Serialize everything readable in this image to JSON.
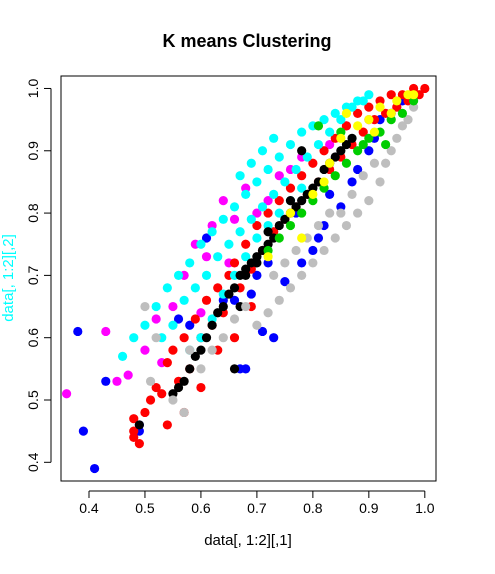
{
  "chart_data": {
    "type": "scatter",
    "title": "K means Clustering",
    "xlabel": "data[, 1:2][,1]",
    "ylabel": "data[, 1:2][,2]",
    "xlim": [
      0.35,
      1.02
    ],
    "ylim": [
      0.37,
      1.02
    ],
    "x_ticks": [
      0.4,
      0.5,
      0.6,
      0.7,
      0.8,
      0.9,
      1.0
    ],
    "x_tick_labels": [
      "0.4",
      "0.5",
      "0.6",
      "0.7",
      "0.8",
      "0.9",
      "1.0"
    ],
    "y_ticks": [
      0.4,
      0.5,
      0.6,
      0.7,
      0.8,
      0.9,
      1.0
    ],
    "y_tick_labels": [
      "0.4",
      "0.5",
      "0.6",
      "0.7",
      "0.8",
      "0.9",
      "1.0"
    ],
    "grid": false,
    "legend": "none",
    "clusters": [
      {
        "color": "#0000ff",
        "points": [
          [
            0.38,
            0.61
          ],
          [
            0.39,
            0.45
          ],
          [
            0.41,
            0.39
          ],
          [
            0.43,
            0.53
          ],
          [
            0.49,
            0.46
          ],
          [
            0.49,
            0.45
          ],
          [
            0.56,
            0.63
          ],
          [
            0.58,
            0.62
          ],
          [
            0.61,
            0.76
          ],
          [
            0.64,
            0.66
          ],
          [
            0.66,
            0.66
          ],
          [
            0.67,
            0.55
          ],
          [
            0.68,
            0.55
          ],
          [
            0.69,
            0.67
          ],
          [
            0.7,
            0.7
          ],
          [
            0.71,
            0.61
          ],
          [
            0.72,
            0.72
          ],
          [
            0.73,
            0.6
          ],
          [
            0.75,
            0.69
          ],
          [
            0.77,
            0.8
          ],
          [
            0.78,
            0.72
          ],
          [
            0.8,
            0.74
          ],
          [
            0.81,
            0.76
          ],
          [
            0.82,
            0.78
          ],
          [
            0.83,
            0.83
          ],
          [
            0.85,
            0.81
          ],
          [
            0.87,
            0.85
          ],
          [
            0.88,
            0.87
          ],
          [
            0.9,
            0.9
          ],
          [
            0.91,
            0.92
          ],
          [
            0.92,
            0.95
          ],
          [
            0.94,
            0.96
          ],
          [
            0.96,
            0.98
          ]
        ]
      },
      {
        "color": "#ff00ff",
        "points": [
          [
            0.36,
            0.51
          ],
          [
            0.43,
            0.61
          ],
          [
            0.45,
            0.53
          ],
          [
            0.47,
            0.54
          ],
          [
            0.5,
            0.58
          ],
          [
            0.52,
            0.63
          ],
          [
            0.53,
            0.56
          ],
          [
            0.55,
            0.65
          ],
          [
            0.57,
            0.7
          ],
          [
            0.59,
            0.75
          ],
          [
            0.6,
            0.64
          ],
          [
            0.61,
            0.73
          ],
          [
            0.62,
            0.78
          ],
          [
            0.64,
            0.82
          ],
          [
            0.65,
            0.72
          ],
          [
            0.66,
            0.79
          ],
          [
            0.68,
            0.84
          ],
          [
            0.7,
            0.8
          ],
          [
            0.72,
            0.82
          ],
          [
            0.74,
            0.86
          ],
          [
            0.76,
            0.87
          ],
          [
            0.78,
            0.89
          ],
          [
            0.83,
            0.91
          ],
          [
            0.86,
            0.94
          ],
          [
            0.9,
            0.95
          ]
        ]
      },
      {
        "color": "#ff0000",
        "points": [
          [
            0.48,
            0.44
          ],
          [
            0.48,
            0.45
          ],
          [
            0.48,
            0.47
          ],
          [
            0.49,
            0.43
          ],
          [
            0.5,
            0.48
          ],
          [
            0.51,
            0.5
          ],
          [
            0.52,
            0.52
          ],
          [
            0.53,
            0.51
          ],
          [
            0.54,
            0.46
          ],
          [
            0.54,
            0.56
          ],
          [
            0.55,
            0.58
          ],
          [
            0.56,
            0.53
          ],
          [
            0.57,
            0.6
          ],
          [
            0.58,
            0.55
          ],
          [
            0.59,
            0.63
          ],
          [
            0.6,
            0.6
          ],
          [
            0.61,
            0.66
          ],
          [
            0.62,
            0.62
          ],
          [
            0.63,
            0.68
          ],
          [
            0.64,
            0.64
          ],
          [
            0.65,
            0.7
          ],
          [
            0.66,
            0.72
          ],
          [
            0.67,
            0.68
          ],
          [
            0.68,
            0.75
          ],
          [
            0.69,
            0.71
          ],
          [
            0.7,
            0.78
          ],
          [
            0.71,
            0.74
          ],
          [
            0.72,
            0.8
          ],
          [
            0.73,
            0.77
          ],
          [
            0.74,
            0.82
          ],
          [
            0.75,
            0.79
          ],
          [
            0.76,
            0.84
          ],
          [
            0.77,
            0.81
          ],
          [
            0.78,
            0.86
          ],
          [
            0.79,
            0.83
          ],
          [
            0.8,
            0.88
          ],
          [
            0.81,
            0.85
          ],
          [
            0.82,
            0.9
          ],
          [
            0.83,
            0.87
          ],
          [
            0.84,
            0.92
          ],
          [
            0.85,
            0.89
          ],
          [
            0.86,
            0.94
          ],
          [
            0.87,
            0.91
          ],
          [
            0.88,
            0.96
          ],
          [
            0.89,
            0.93
          ],
          [
            0.9,
            0.97
          ],
          [
            0.91,
            0.95
          ],
          [
            0.92,
            0.98
          ],
          [
            0.93,
            0.96
          ],
          [
            0.94,
            0.99
          ],
          [
            0.95,
            0.97
          ],
          [
            0.96,
            0.99
          ],
          [
            0.97,
            0.98
          ],
          [
            0.98,
            1.0
          ],
          [
            0.99,
            0.99
          ],
          [
            1.0,
            1.0
          ],
          [
            0.57,
            0.48
          ],
          [
            0.6,
            0.52
          ],
          [
            0.63,
            0.58
          ],
          [
            0.66,
            0.6
          ],
          [
            0.69,
            0.65
          ]
        ]
      },
      {
        "color": "#00ffff",
        "points": [
          [
            0.46,
            0.57
          ],
          [
            0.48,
            0.6
          ],
          [
            0.5,
            0.62
          ],
          [
            0.52,
            0.65
          ],
          [
            0.53,
            0.6
          ],
          [
            0.54,
            0.68
          ],
          [
            0.55,
            0.62
          ],
          [
            0.56,
            0.7
          ],
          [
            0.57,
            0.66
          ],
          [
            0.58,
            0.72
          ],
          [
            0.59,
            0.68
          ],
          [
            0.6,
            0.75
          ],
          [
            0.61,
            0.7
          ],
          [
            0.62,
            0.77
          ],
          [
            0.63,
            0.73
          ],
          [
            0.64,
            0.79
          ],
          [
            0.65,
            0.75
          ],
          [
            0.66,
            0.81
          ],
          [
            0.67,
            0.77
          ],
          [
            0.68,
            0.83
          ],
          [
            0.69,
            0.79
          ],
          [
            0.7,
            0.85
          ],
          [
            0.71,
            0.81
          ],
          [
            0.72,
            0.87
          ],
          [
            0.73,
            0.83
          ],
          [
            0.74,
            0.89
          ],
          [
            0.75,
            0.85
          ],
          [
            0.76,
            0.91
          ],
          [
            0.77,
            0.87
          ],
          [
            0.78,
            0.93
          ],
          [
            0.79,
            0.89
          ],
          [
            0.8,
            0.94
          ],
          [
            0.81,
            0.91
          ],
          [
            0.82,
            0.95
          ],
          [
            0.83,
            0.93
          ],
          [
            0.84,
            0.96
          ],
          [
            0.85,
            0.95
          ],
          [
            0.86,
            0.97
          ],
          [
            0.87,
            0.97
          ],
          [
            0.88,
            0.98
          ],
          [
            0.89,
            0.98
          ],
          [
            0.9,
            0.99
          ],
          [
            0.58,
            0.58
          ],
          [
            0.6,
            0.6
          ],
          [
            0.62,
            0.63
          ],
          [
            0.64,
            0.67
          ],
          [
            0.66,
            0.7
          ],
          [
            0.68,
            0.73
          ],
          [
            0.7,
            0.76
          ],
          [
            0.72,
            0.78
          ],
          [
            0.74,
            0.8
          ],
          [
            0.76,
            0.82
          ],
          [
            0.78,
            0.84
          ],
          [
            0.67,
            0.86
          ],
          [
            0.69,
            0.88
          ],
          [
            0.71,
            0.9
          ],
          [
            0.73,
            0.92
          ]
        ]
      },
      {
        "color": "#000000",
        "points": [
          [
            0.49,
            0.46
          ],
          [
            0.55,
            0.51
          ],
          [
            0.56,
            0.52
          ],
          [
            0.57,
            0.53
          ],
          [
            0.58,
            0.55
          ],
          [
            0.59,
            0.57
          ],
          [
            0.6,
            0.58
          ],
          [
            0.61,
            0.6
          ],
          [
            0.62,
            0.62
          ],
          [
            0.63,
            0.64
          ],
          [
            0.64,
            0.65
          ],
          [
            0.65,
            0.67
          ],
          [
            0.66,
            0.68
          ],
          [
            0.67,
            0.7
          ],
          [
            0.68,
            0.71
          ],
          [
            0.69,
            0.72
          ],
          [
            0.7,
            0.73
          ],
          [
            0.71,
            0.74
          ],
          [
            0.72,
            0.75
          ],
          [
            0.73,
            0.76
          ],
          [
            0.74,
            0.78
          ],
          [
            0.75,
            0.79
          ],
          [
            0.76,
            0.8
          ],
          [
            0.77,
            0.81
          ],
          [
            0.78,
            0.82
          ],
          [
            0.79,
            0.83
          ],
          [
            0.8,
            0.84
          ],
          [
            0.81,
            0.85
          ],
          [
            0.82,
            0.87
          ],
          [
            0.83,
            0.88
          ],
          [
            0.84,
            0.89
          ],
          [
            0.85,
            0.9
          ],
          [
            0.86,
            0.91
          ],
          [
            0.87,
            0.92
          ],
          [
            0.66,
            0.55
          ],
          [
            0.68,
            0.7
          ],
          [
            0.7,
            0.72
          ],
          [
            0.72,
            0.77
          ],
          [
            0.76,
            0.82
          ],
          [
            0.78,
            0.9
          ],
          [
            0.67,
            0.65
          ]
        ]
      },
      {
        "color": "#bebebe",
        "points": [
          [
            0.5,
            0.65
          ],
          [
            0.51,
            0.53
          ],
          [
            0.52,
            0.6
          ],
          [
            0.55,
            0.5
          ],
          [
            0.57,
            0.48
          ],
          [
            0.58,
            0.58
          ],
          [
            0.6,
            0.55
          ],
          [
            0.62,
            0.58
          ],
          [
            0.64,
            0.6
          ],
          [
            0.66,
            0.63
          ],
          [
            0.68,
            0.65
          ],
          [
            0.7,
            0.62
          ],
          [
            0.72,
            0.64
          ],
          [
            0.74,
            0.66
          ],
          [
            0.76,
            0.68
          ],
          [
            0.78,
            0.7
          ],
          [
            0.8,
            0.72
          ],
          [
            0.82,
            0.74
          ],
          [
            0.84,
            0.76
          ],
          [
            0.86,
            0.78
          ],
          [
            0.88,
            0.8
          ],
          [
            0.9,
            0.82
          ],
          [
            0.92,
            0.85
          ],
          [
            0.93,
            0.88
          ],
          [
            0.94,
            0.9
          ],
          [
            0.95,
            0.92
          ],
          [
            0.96,
            0.94
          ],
          [
            0.97,
            0.95
          ],
          [
            0.98,
            0.97
          ],
          [
            0.85,
            0.8
          ],
          [
            0.87,
            0.83
          ],
          [
            0.89,
            0.86
          ],
          [
            0.91,
            0.88
          ],
          [
            0.73,
            0.7
          ],
          [
            0.75,
            0.72
          ],
          [
            0.77,
            0.74
          ],
          [
            0.79,
            0.76
          ],
          [
            0.81,
            0.78
          ],
          [
            0.83,
            0.8
          ]
        ]
      },
      {
        "color": "#00cd00",
        "points": [
          [
            0.72,
            0.74
          ],
          [
            0.74,
            0.76
          ],
          [
            0.76,
            0.78
          ],
          [
            0.78,
            0.8
          ],
          [
            0.8,
            0.82
          ],
          [
            0.82,
            0.84
          ],
          [
            0.84,
            0.86
          ],
          [
            0.86,
            0.88
          ],
          [
            0.88,
            0.9
          ],
          [
            0.9,
            0.92
          ],
          [
            0.92,
            0.93
          ],
          [
            0.94,
            0.95
          ],
          [
            0.96,
            0.96
          ],
          [
            0.98,
            0.98
          ],
          [
            0.81,
            0.94
          ],
          [
            0.85,
            0.93
          ],
          [
            0.89,
            0.91
          ],
          [
            0.93,
            0.91
          ]
        ]
      },
      {
        "color": "#ffff00",
        "points": [
          [
            0.72,
            0.73
          ],
          [
            0.76,
            0.8
          ],
          [
            0.8,
            0.83
          ],
          [
            0.83,
            0.88
          ],
          [
            0.85,
            0.92
          ],
          [
            0.88,
            0.94
          ],
          [
            0.9,
            0.95
          ],
          [
            0.92,
            0.97
          ],
          [
            0.94,
            0.96
          ],
          [
            0.95,
            0.98
          ],
          [
            0.97,
            0.99
          ],
          [
            0.98,
            0.99
          ],
          [
            0.86,
            0.96
          ],
          [
            0.91,
            0.93
          ],
          [
            0.78,
            0.76
          ],
          [
            0.82,
            0.85
          ]
        ]
      }
    ]
  }
}
